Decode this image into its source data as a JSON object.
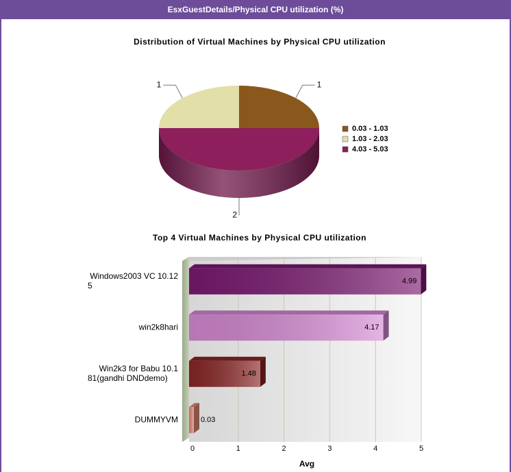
{
  "header": {
    "title": "EsxGuestDetails/Physical CPU utilization (%)"
  },
  "chart_data": [
    {
      "type": "pie",
      "title": "Distribution of Virtual Machines by Physical CPU utilization",
      "categories": [
        "0.03 - 1.03",
        "1.03 - 2.03",
        "4.03 - 5.03"
      ],
      "values": [
        1,
        1,
        2
      ],
      "colors": [
        "#8a571c",
        "#e3dfa8",
        "#8c1f5c"
      ],
      "legend": "right"
    },
    {
      "type": "hbar",
      "title": "Top 4 Virtual Machines by Physical CPU utilization",
      "categories": [
        "Windows2003 VC 10.125",
        "win2k8hari",
        "Win2k3 for Babu 10.181(gandhi DNDdemo)",
        "DUMMYVM"
      ],
      "values": [
        4.99,
        4.17,
        1.48,
        0.03
      ],
      "colors": [
        "#7c1a72",
        "#d88bd6",
        "#8c2626",
        "#e58a78"
      ],
      "xlabel": "Avg",
      "xlim": [
        0,
        5
      ],
      "xticks": [
        0,
        1,
        2,
        3,
        4,
        5
      ],
      "grid": true
    }
  ]
}
